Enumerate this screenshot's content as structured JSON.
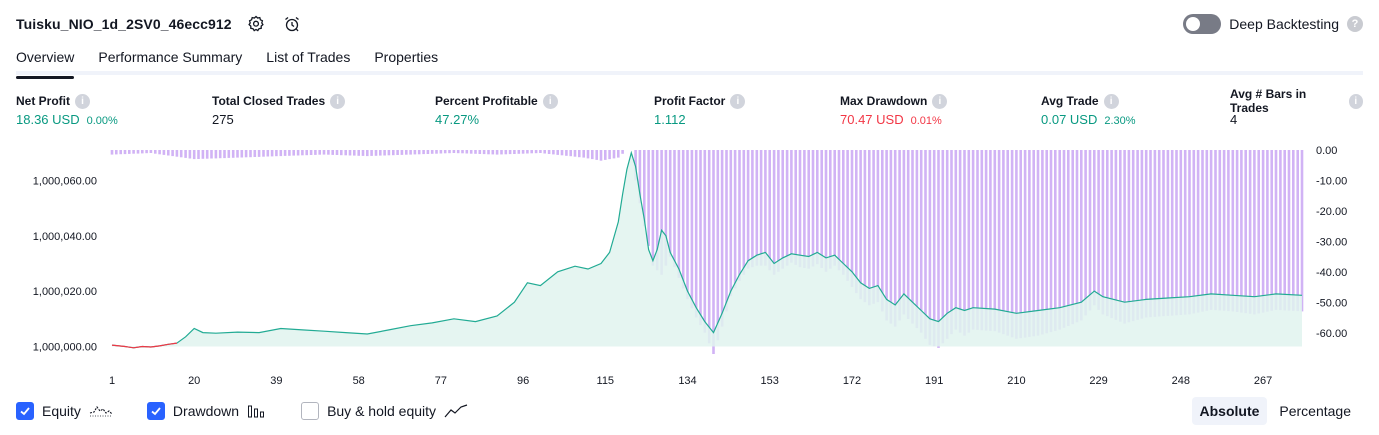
{
  "header": {
    "title": "Tuisku_NIO_1d_2SV0_46ecc912",
    "deep_backtesting_label": "Deep Backtesting",
    "deep_backtesting_enabled": false
  },
  "tabs": [
    {
      "label": "Overview",
      "active": true
    },
    {
      "label": "Performance Summary",
      "active": false
    },
    {
      "label": "List of Trades",
      "active": false
    },
    {
      "label": "Properties",
      "active": false
    }
  ],
  "metrics": {
    "net_profit": {
      "label": "Net Profit",
      "value": "18.36 USD",
      "sub": "0.00%"
    },
    "total_closed_trades": {
      "label": "Total Closed Trades",
      "value": "275"
    },
    "percent_profitable": {
      "label": "Percent Profitable",
      "value": "47.27%"
    },
    "profit_factor": {
      "label": "Profit Factor",
      "value": "1.112"
    },
    "max_drawdown": {
      "label": "Max Drawdown",
      "value": "70.47 USD",
      "sub": "0.01%"
    },
    "avg_trade": {
      "label": "Avg Trade",
      "value": "0.07 USD",
      "sub": "2.30%"
    },
    "avg_bars": {
      "label": "Avg # Bars in Trades",
      "value": "4"
    }
  },
  "colors": {
    "positive": "#089981",
    "negative": "#f23645",
    "equity_line": "#22ab94",
    "equity_fill": "#e0f3ee",
    "drawdown": "#d1b3f5",
    "equity_loss_line": "#f23645"
  },
  "chart_data": {
    "type": "area",
    "x_ticks": [
      "1",
      "20",
      "39",
      "58",
      "77",
      "96",
      "115",
      "134",
      "153",
      "172",
      "191",
      "210",
      "229",
      "248",
      "267"
    ],
    "x_range": [
      1,
      276
    ],
    "y_left_ticks": [
      "1,000,000.00",
      "1,000,020.00",
      "1,000,040.00",
      "1,000,060.00"
    ],
    "y_left_range": [
      999998,
      1000071
    ],
    "y_right_ticks": [
      "0.00",
      "-10.00",
      "-20.00",
      "-30.00",
      "-40.00",
      "-50.00",
      "-60.00"
    ],
    "y_right_range": [
      -67,
      0
    ],
    "series": [
      {
        "name": "Equity",
        "x": [
          1,
          4,
          6,
          8,
          10,
          12,
          14,
          16,
          18,
          20,
          22,
          25,
          30,
          35,
          40,
          45,
          50,
          55,
          60,
          65,
          70,
          75,
          80,
          85,
          90,
          94,
          97,
          100,
          104,
          108,
          111,
          114,
          116,
          118,
          119,
          120,
          121,
          122,
          123,
          124,
          125,
          126,
          127,
          128,
          129,
          130,
          132,
          134,
          136,
          138,
          140,
          142,
          144,
          146,
          148,
          150,
          152,
          154,
          156,
          158,
          160,
          162,
          164,
          166,
          168,
          170,
          172,
          174,
          176,
          178,
          180,
          182,
          184,
          186,
          188,
          190,
          192,
          194,
          196,
          198,
          200,
          205,
          210,
          215,
          220,
          225,
          228,
          230,
          235,
          240,
          245,
          250,
          255,
          260,
          265,
          270,
          276
        ],
        "y": [
          1000000.5,
          1000000.0,
          999999.5,
          1000000.0,
          999999.8,
          1000000.2,
          1000000.8,
          1000001.2,
          1000003.5,
          1000006.5,
          1000005.0,
          1000004.8,
          1000005.2,
          1000005.0,
          1000006.5,
          1000006.0,
          1000005.5,
          1000005.0,
          1000004.5,
          1000006.0,
          1000007.5,
          1000008.5,
          1000010.0,
          1000009.0,
          1000011.0,
          1000016.0,
          1000023.0,
          1000022.0,
          1000027.0,
          1000029.0,
          1000028.0,
          1000030.0,
          1000034.0,
          1000045.0,
          1000055.0,
          1000064.0,
          1000070.0,
          1000065.0,
          1000055.0,
          1000046.0,
          1000035.0,
          1000031.0,
          1000035.0,
          1000042.0,
          1000040.0,
          1000034.0,
          1000028.0,
          1000020.0,
          1000014.0,
          1000009.0,
          1000005.0,
          1000012.0,
          1000020.0,
          1000026.0,
          1000031.0,
          1000033.0,
          1000034.0,
          1000030.0,
          1000032.0,
          1000033.5,
          1000033.0,
          1000032.5,
          1000034.0,
          1000032.0,
          1000033.0,
          1000030.0,
          1000027.0,
          1000023.0,
          1000021.0,
          1000022.0,
          1000017.0,
          1000015.0,
          1000019.0,
          1000016.0,
          1000013.0,
          1000010.0,
          1000009.0,
          1000012.0,
          1000014.0,
          1000013.0,
          1000014.0,
          1000013.5,
          1000012.0,
          1000013.0,
          1000014.0,
          1000016.0,
          1000020.0,
          1000018.0,
          1000016.0,
          1000017.0,
          1000017.5,
          1000018.0,
          1000019.0,
          1000018.5,
          1000018.0,
          1000019.0,
          1000018.5
        ]
      },
      {
        "name": "Drawdown",
        "x": [
          1,
          10,
          20,
          30,
          40,
          50,
          60,
          70,
          80,
          90,
          100,
          110,
          114,
          118,
          120,
          121,
          122,
          124,
          126,
          128,
          130,
          132,
          134,
          136,
          138,
          140,
          142,
          144,
          146,
          148,
          150,
          152,
          154,
          156,
          158,
          160,
          162,
          164,
          166,
          168,
          170,
          172,
          174,
          176,
          178,
          180,
          182,
          184,
          186,
          188,
          190,
          192,
          194,
          196,
          198,
          200,
          205,
          210,
          215,
          220,
          225,
          228,
          230,
          235,
          240,
          245,
          250,
          255,
          260,
          265,
          270,
          276
        ],
        "y": [
          -1.5,
          -1.0,
          -3.0,
          -2.5,
          -2.0,
          -1.5,
          -2.0,
          -1.5,
          -1.0,
          -1.5,
          -1.0,
          -2.5,
          -3.5,
          -2.5,
          0.0,
          0.0,
          -10.0,
          -25.0,
          -38.0,
          -41.0,
          -35.0,
          -42.0,
          -49.0,
          -55.0,
          -60.0,
          -67.0,
          -58.0,
          -48.0,
          -43.0,
          -39.0,
          -38.0,
          -38.0,
          -41.0,
          -39.0,
          -37.0,
          -38.5,
          -39.0,
          -37.5,
          -40.0,
          -38.0,
          -41.0,
          -45.0,
          -49.0,
          -51.0,
          -50.0,
          -56.0,
          -58.0,
          -54.0,
          -57.0,
          -60.0,
          -64.0,
          -65.0,
          -62.0,
          -59.0,
          -61.0,
          -59.0,
          -59.5,
          -62.0,
          -61.0,
          -59.0,
          -56.0,
          -51.0,
          -54.0,
          -57.0,
          -55.0,
          -54.5,
          -54.0,
          -52.5,
          -53.0,
          -54.0,
          -52.5,
          -53.0
        ]
      }
    ],
    "legend": [
      {
        "label": "Equity",
        "checked": true
      },
      {
        "label": "Drawdown",
        "checked": true
      },
      {
        "label": "Buy & hold equity",
        "checked": false
      }
    ],
    "grid": false,
    "legend_position": "bottom-left"
  },
  "view_mode": {
    "absolute_label": "Absolute",
    "percentage_label": "Percentage",
    "selected": "Absolute"
  }
}
